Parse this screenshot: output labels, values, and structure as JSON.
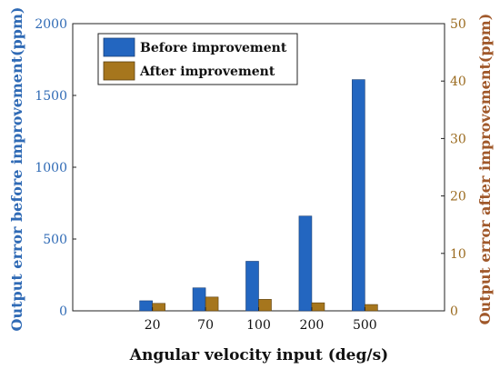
{
  "chart_data": {
    "type": "bar",
    "title": "",
    "xlabel": "Angular velocity input (deg/s)",
    "ylabel_left": "Output error before improvement(ppm)",
    "ylabel_right": "Output error after improvement(ppm)",
    "categories": [
      "20",
      "70",
      "100",
      "200",
      "500"
    ],
    "ylim_left": [
      0,
      2000
    ],
    "ylim_right": [
      0,
      50
    ],
    "yticks_left": [
      "0",
      "500",
      "1000",
      "1500",
      "2000"
    ],
    "yticks_right": [
      "0",
      "10",
      "20",
      "30",
      "40",
      "50"
    ],
    "grid": false,
    "legend_position": "top-left",
    "series": [
      {
        "name": "Before improvement",
        "axis": "left",
        "color": "#2366c0",
        "values": [
          70,
          160,
          345,
          660,
          1610
        ]
      },
      {
        "name": "After improvement",
        "axis": "right",
        "color": "#a6761d",
        "values": [
          1.3,
          2.4,
          2.0,
          1.4,
          1.1
        ]
      }
    ]
  }
}
